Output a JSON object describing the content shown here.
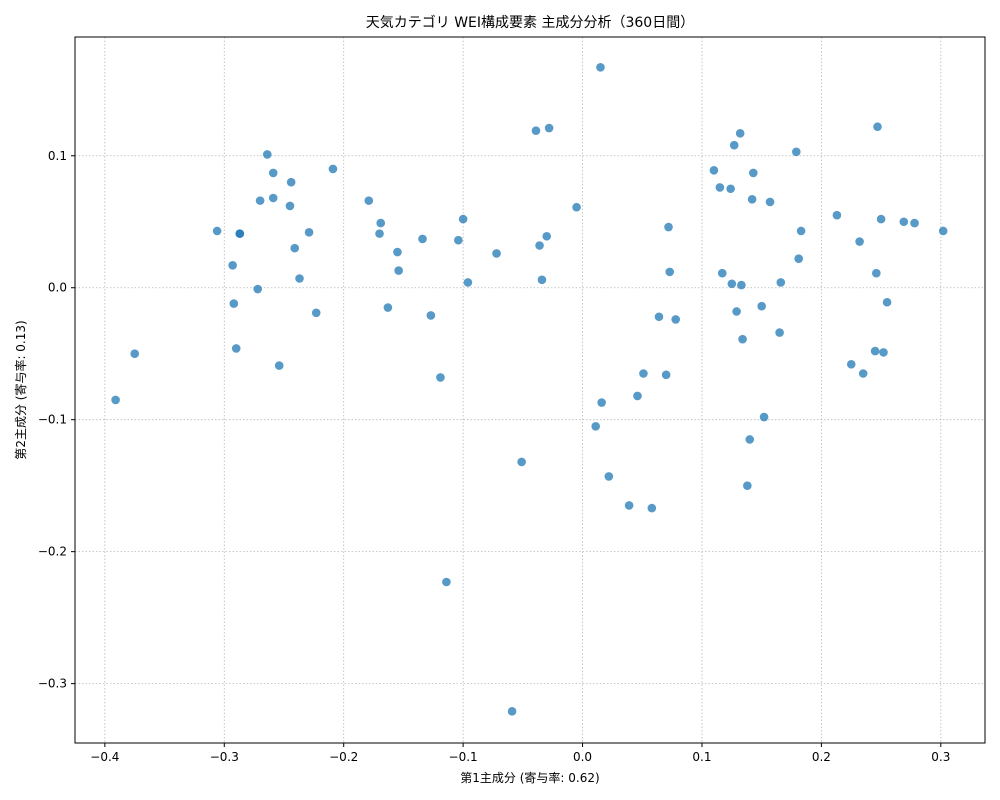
{
  "chart_data": {
    "type": "scatter",
    "title": "天気カテゴリ WEI構成要素 主成分分析（360日間）",
    "xlabel": "第1主成分 (寄与率: 0.62)",
    "ylabel": "第2主成分 (寄与率: 0.13)",
    "xlim": [
      -0.425,
      0.337
    ],
    "ylim": [
      -0.345,
      0.19
    ],
    "xticks": [
      -0.4,
      -0.3,
      -0.2,
      -0.1,
      0.0,
      0.1,
      0.2,
      0.3
    ],
    "yticks": [
      -0.3,
      -0.2,
      -0.1,
      0.0,
      0.1
    ],
    "grid": true,
    "color": "#1f77b4",
    "x": [
      -0.391,
      -0.375,
      -0.306,
      -0.293,
      -0.292,
      -0.29,
      -0.287,
      -0.287,
      -0.272,
      -0.27,
      -0.264,
      -0.259,
      -0.259,
      -0.254,
      -0.245,
      -0.244,
      -0.241,
      -0.237,
      -0.229,
      -0.223,
      -0.209,
      -0.179,
      -0.17,
      -0.169,
      -0.163,
      -0.155,
      -0.154,
      -0.134,
      -0.127,
      -0.119,
      -0.114,
      -0.104,
      -0.1,
      -0.096,
      -0.072,
      -0.059,
      -0.051,
      -0.039,
      -0.036,
      -0.034,
      -0.03,
      -0.028,
      -0.005,
      0.011,
      0.015,
      0.016,
      0.022,
      0.039,
      0.046,
      0.051,
      0.058,
      0.064,
      0.07,
      0.072,
      0.073,
      0.078,
      0.11,
      0.115,
      0.117,
      0.124,
      0.125,
      0.127,
      0.129,
      0.132,
      0.133,
      0.134,
      0.138,
      0.14,
      0.142,
      0.143,
      0.15,
      0.152,
      0.157,
      0.165,
      0.166,
      0.179,
      0.181,
      0.183,
      0.213,
      0.225,
      0.232,
      0.235,
      0.245,
      0.246,
      0.247,
      0.25,
      0.252,
      0.255,
      0.269,
      0.278,
      0.302
    ],
    "y": [
      -0.085,
      -0.05,
      0.043,
      0.017,
      -0.012,
      -0.046,
      0.041,
      0.041,
      -0.001,
      0.066,
      0.101,
      0.087,
      0.068,
      -0.059,
      0.062,
      0.08,
      0.03,
      0.007,
      0.042,
      -0.019,
      0.09,
      0.066,
      0.041,
      0.049,
      -0.015,
      0.027,
      0.013,
      0.037,
      -0.021,
      -0.068,
      -0.223,
      0.036,
      0.052,
      0.004,
      0.026,
      -0.321,
      -0.132,
      0.119,
      0.032,
      0.006,
      0.039,
      0.121,
      0.061,
      -0.105,
      0.167,
      -0.087,
      -0.143,
      -0.165,
      -0.082,
      -0.065,
      -0.167,
      -0.022,
      -0.066,
      0.046,
      0.012,
      -0.024,
      0.089,
      0.076,
      0.011,
      0.075,
      0.003,
      0.108,
      -0.018,
      0.117,
      0.002,
      -0.039,
      -0.15,
      -0.115,
      0.067,
      0.087,
      -0.014,
      -0.098,
      0.065,
      -0.034,
      0.004,
      0.103,
      0.022,
      0.043,
      0.055,
      -0.058,
      0.035,
      -0.065,
      -0.048,
      0.011,
      0.122,
      0.052,
      -0.049,
      -0.011,
      0.05,
      0.049,
      0.043
    ]
  }
}
